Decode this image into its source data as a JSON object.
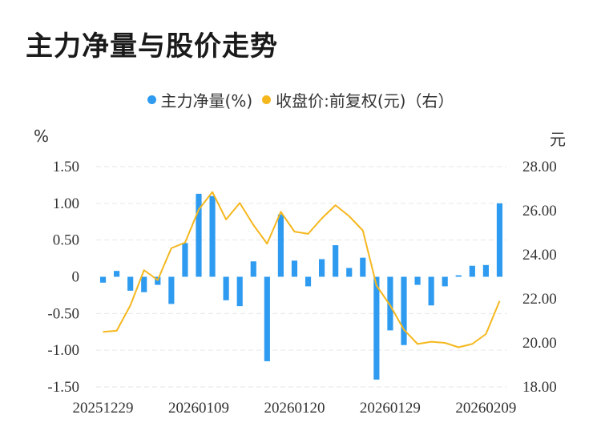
{
  "title": "主力净量与股价走势",
  "legend": {
    "series1": "主力净量(%)",
    "series2": "收盘价:前复权(元)（右）"
  },
  "units": {
    "left": "%",
    "right": "元"
  },
  "colors": {
    "bar": "#2E9BF0",
    "line": "#F5B71E",
    "grid": "#E6E6E6",
    "text": "#333333"
  },
  "chart_data": {
    "type": "bar",
    "title": "主力净量与股价走势",
    "x_tick_labels": [
      "20251229",
      "20260109",
      "20260120",
      "20260129",
      "20260209"
    ],
    "y_left": {
      "label": "%",
      "ticks": [
        "1.50",
        "1.00",
        "0.50",
        "0",
        "-0.50",
        "-1.00",
        "-1.50"
      ],
      "lim": [
        -1.5,
        1.5
      ]
    },
    "y_right": {
      "label": "元",
      "ticks": [
        "28.00",
        "26.00",
        "24.00",
        "22.00",
        "20.00",
        "18.00"
      ],
      "lim": [
        18,
        28
      ]
    },
    "grid": true,
    "legend_position": "top",
    "series": [
      {
        "name": "主力净量(%)",
        "type": "bar",
        "axis": "left",
        "values": [
          -0.08,
          0.08,
          -0.19,
          -0.21,
          -0.11,
          -0.37,
          0.46,
          1.13,
          1.1,
          -0.32,
          -0.4,
          0.21,
          -1.15,
          0.85,
          0.22,
          -0.13,
          0.24,
          0.43,
          0.12,
          0.26,
          -1.4,
          -0.73,
          -0.93,
          -0.11,
          -0.39,
          -0.13,
          0.02,
          0.15,
          0.16,
          1.0
        ]
      },
      {
        "name": "收盘价:前复权(元)（右）",
        "type": "line",
        "axis": "right",
        "values": [
          20.5,
          20.55,
          21.7,
          23.3,
          22.85,
          24.3,
          24.55,
          26.05,
          26.85,
          25.6,
          26.35,
          25.35,
          24.5,
          25.95,
          25.05,
          24.95,
          25.65,
          26.25,
          25.75,
          25.1,
          22.6,
          21.7,
          20.6,
          19.95,
          20.05,
          20.0,
          19.8,
          19.95,
          20.4,
          21.9
        ]
      }
    ]
  }
}
